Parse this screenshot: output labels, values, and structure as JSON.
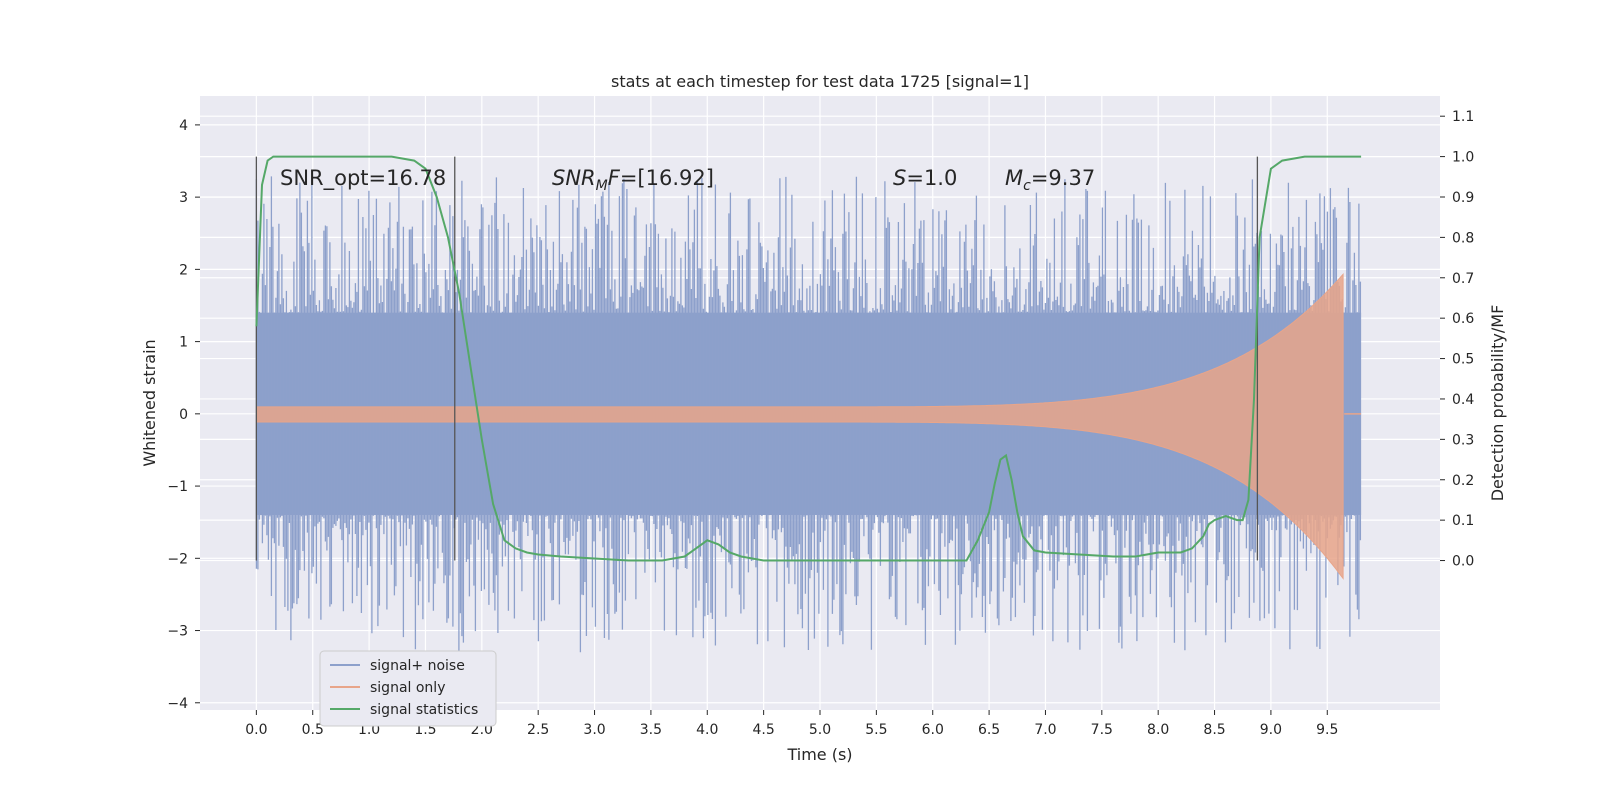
{
  "chart_data": {
    "type": "line",
    "title": "stats at each timestep for test data 1725 [signal=1]",
    "xlabel": "Time (s)",
    "ylabel_left": "Whitened strain",
    "ylabel_right": "Detection probability/MF",
    "xlim": [
      -0.5,
      10.5
    ],
    "ylim_left": [
      -4.1,
      4.4
    ],
    "ylim_right": [
      -0.37,
      1.15
    ],
    "x_ticks": [
      "0.0",
      "0.5",
      "1.0",
      "1.5",
      "2.0",
      "2.5",
      "3.0",
      "3.5",
      "4.0",
      "4.5",
      "5.0",
      "5.5",
      "6.0",
      "6.5",
      "7.0",
      "7.5",
      "8.0",
      "8.5",
      "9.0",
      "9.5"
    ],
    "y_ticks_left": [
      "4",
      "3",
      "2",
      "1",
      "0",
      "−1",
      "−2",
      "−3",
      "−4"
    ],
    "y_ticks_right": [
      "1.1",
      "1.0",
      "0.9",
      "0.8",
      "0.7",
      "0.6",
      "0.5",
      "0.4",
      "0.3",
      "0.2",
      "0.1",
      "0.0"
    ],
    "grid": true,
    "legend_placement": "lower-left",
    "annotations": [
      "SNR_opt=16.78",
      "SNR_MF=[16.92]",
      "S=1.0",
      "M_c=9.37"
    ],
    "vlines_x": [
      0.0,
      1.76,
      8.88
    ],
    "series": [
      {
        "name": "signal+ noise",
        "color": "#8da0cb",
        "kind": "noise",
        "x_range": [
          0.0,
          9.8
        ],
        "band_abs": 1.4,
        "peak_abs": 3.3
      },
      {
        "name": "signal only",
        "color": "#e8a58a",
        "kind": "chirp",
        "x_range": [
          0.0,
          9.8
        ],
        "merger_x": 9.65,
        "peak_value": 1.95,
        "trough_value": -2.3
      },
      {
        "name": "signal statistics",
        "color": "#55a868",
        "kind": "line",
        "axis": "right",
        "x": [
          0.0,
          0.05,
          0.1,
          0.15,
          0.2,
          0.3,
          0.5,
          0.8,
          1.0,
          1.2,
          1.4,
          1.5,
          1.6,
          1.7,
          1.8,
          1.9,
          2.0,
          2.1,
          2.2,
          2.3,
          2.4,
          2.5,
          2.7,
          3.0,
          3.3,
          3.6,
          3.8,
          3.9,
          4.0,
          4.1,
          4.2,
          4.3,
          4.5,
          4.8,
          5.0,
          5.2,
          5.5,
          5.8,
          6.0,
          6.3,
          6.4,
          6.5,
          6.55,
          6.6,
          6.65,
          6.7,
          6.75,
          6.8,
          6.9,
          7.0,
          7.3,
          7.6,
          7.8,
          8.0,
          8.1,
          8.2,
          8.3,
          8.4,
          8.45,
          8.5,
          8.6,
          8.7,
          8.75,
          8.8,
          8.85,
          8.9,
          9.0,
          9.1,
          9.3,
          9.5,
          9.8
        ],
        "y": [
          0.58,
          0.93,
          0.99,
          1.0,
          1.0,
          1.0,
          1.0,
          1.0,
          1.0,
          1.0,
          0.99,
          0.97,
          0.9,
          0.8,
          0.66,
          0.48,
          0.3,
          0.14,
          0.05,
          0.03,
          0.02,
          0.015,
          0.01,
          0.005,
          0.0,
          0.0,
          0.01,
          0.03,
          0.05,
          0.04,
          0.02,
          0.01,
          0.0,
          0.0,
          0.0,
          0.0,
          0.0,
          0.0,
          0.0,
          0.0,
          0.05,
          0.12,
          0.19,
          0.25,
          0.26,
          0.2,
          0.12,
          0.06,
          0.025,
          0.02,
          0.015,
          0.01,
          0.01,
          0.02,
          0.02,
          0.02,
          0.03,
          0.06,
          0.09,
          0.1,
          0.11,
          0.1,
          0.1,
          0.15,
          0.4,
          0.8,
          0.97,
          0.99,
          1.0,
          1.0,
          1.0
        ]
      }
    ]
  }
}
